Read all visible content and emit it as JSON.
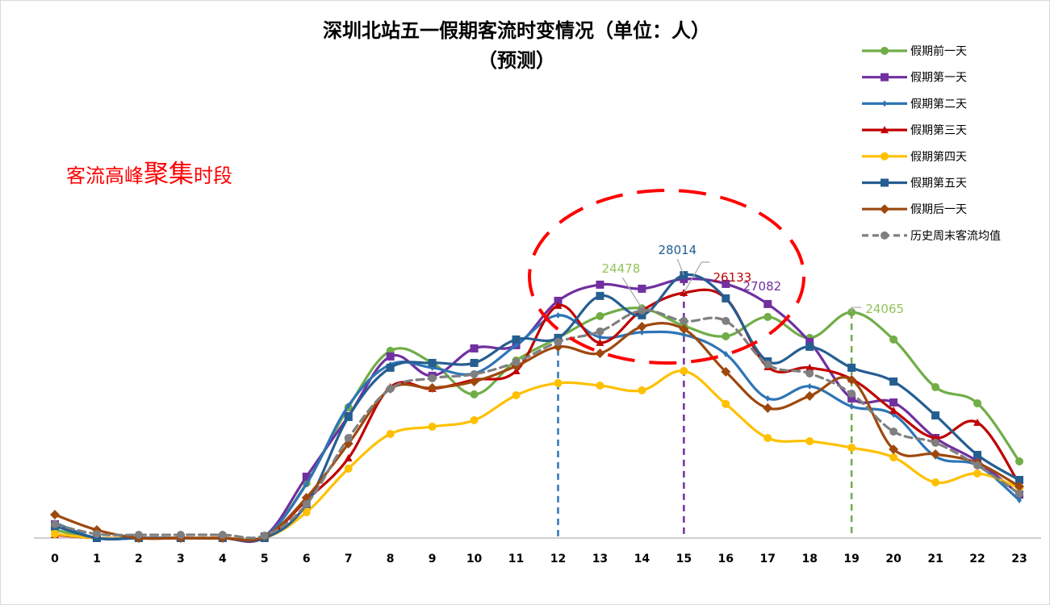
{
  "chart_data": {
    "type": "line",
    "title": "深圳北站五一假期客流时变情况（单位：人）",
    "subtitle": "（预测）",
    "xlabel": "",
    "ylabel": "",
    "categories": [
      "0",
      "1",
      "2",
      "3",
      "4",
      "5",
      "6",
      "7",
      "8",
      "9",
      "10",
      "11",
      "12",
      "13",
      "14",
      "15",
      "16",
      "17",
      "18",
      "19",
      "20",
      "21",
      "22",
      "23"
    ],
    "ylim": [
      0,
      30000
    ],
    "grid": false,
    "smooth": true,
    "legend_position": "right",
    "series": [
      {
        "name": "假期前一天",
        "color": "#70AD47",
        "marker": "circle",
        "dash": false,
        "values": [
          860,
          0,
          0,
          0,
          0,
          170,
          5850,
          13930,
          19950,
          18660,
          15310,
          18920,
          21330,
          23650,
          24478,
          22620,
          21500,
          23560,
          21330,
          24065,
          21160,
          16080,
          14360,
          8170
        ]
      },
      {
        "name": "假期第一天",
        "color": "#7030A0",
        "marker": "square",
        "dash": false,
        "values": [
          1460,
          0,
          0,
          0,
          0,
          170,
          6540,
          12990,
          19350,
          17290,
          20210,
          20550,
          25280,
          27000,
          26570,
          27600,
          27082,
          24940,
          20900,
          14880,
          14450,
          10660,
          8170,
          4640
        ]
      },
      {
        "name": "假期第二天",
        "color": "#2E75B6",
        "marker": "diamond-small",
        "dash": false,
        "values": [
          1630,
          0,
          0,
          0,
          0,
          170,
          5760,
          14100,
          18490,
          18150,
          17540,
          20550,
          23740,
          21410,
          21930,
          21670,
          19610,
          14880,
          16170,
          14020,
          13160,
          8690,
          7740,
          4040
        ]
      },
      {
        "name": "假期第三天",
        "color": "#C00000",
        "marker": "triangle",
        "dash": false,
        "values": [
          340,
          0,
          0,
          0,
          0,
          0,
          4040,
          8510,
          16080,
          15910,
          16860,
          17800,
          24770,
          20810,
          24250,
          26133,
          25540,
          18230,
          18150,
          16940,
          13590,
          10660,
          12300,
          5760
        ]
      },
      {
        "name": "假期第四天",
        "color": "#FFC000",
        "marker": "circle",
        "dash": false,
        "values": [
          430,
          0,
          0,
          0,
          0,
          0,
          2750,
          7400,
          11090,
          11870,
          12560,
          15220,
          16510,
          16250,
          15740,
          17800,
          14280,
          10660,
          10320,
          9630,
          8600,
          5930,
          6880,
          5330
        ]
      },
      {
        "name": "假期第五天",
        "color": "#255E91",
        "marker": "square",
        "dash": false,
        "values": [
          1290,
          0,
          0,
          0,
          0,
          0,
          3610,
          12900,
          18150,
          18660,
          18660,
          21160,
          21330,
          25800,
          23740,
          28014,
          25540,
          18830,
          20380,
          18150,
          16680,
          13070,
          8860,
          6190
        ]
      },
      {
        "name": "假期后一天",
        "color": "#9E480E",
        "marker": "diamond",
        "dash": false,
        "values": [
          2490,
          860,
          0,
          0,
          0,
          170,
          4300,
          10060,
          15910,
          16000,
          16680,
          18320,
          20380,
          19690,
          22530,
          22270,
          17720,
          13850,
          15140,
          16860,
          9460,
          8940,
          8000,
          5500
        ]
      },
      {
        "name": "历史周末客流均值",
        "color": "#7F7F7F",
        "marker": "circle",
        "dash": true,
        "values": [
          1460,
          430,
          340,
          340,
          340,
          260,
          3610,
          10660,
          15910,
          17030,
          17460,
          18750,
          20900,
          22020,
          24250,
          23130,
          23130,
          18490,
          17540,
          15390,
          11350,
          10150,
          7740,
          4730
        ]
      }
    ],
    "data_labels": [
      {
        "series": "假期前一天",
        "x": "14",
        "text": "24478",
        "color": "#92C45A"
      },
      {
        "series": "假期第五天",
        "x": "15",
        "text": "28014",
        "color": "#255E91"
      },
      {
        "series": "假期第三天",
        "x": "15",
        "text": "26133",
        "color": "#C00000"
      },
      {
        "series": "假期第一天",
        "x": "16",
        "text": "27082",
        "color": "#7030A0"
      },
      {
        "series": "假期前一天",
        "x": "19",
        "text": "24065",
        "color": "#92C45A"
      }
    ],
    "reference_lines": [
      {
        "x": "12",
        "color": "#2E75B6"
      },
      {
        "x": "15",
        "color": "#7030A0"
      },
      {
        "x": "19",
        "color": "#70AD47"
      }
    ],
    "annotation": {
      "text_before": "客流高峰",
      "text_emphasis": "聚集",
      "text_after": "时段",
      "color": "#FF0000",
      "highlight": "peak hours 12–17 circled with red dashed ellipse"
    }
  }
}
